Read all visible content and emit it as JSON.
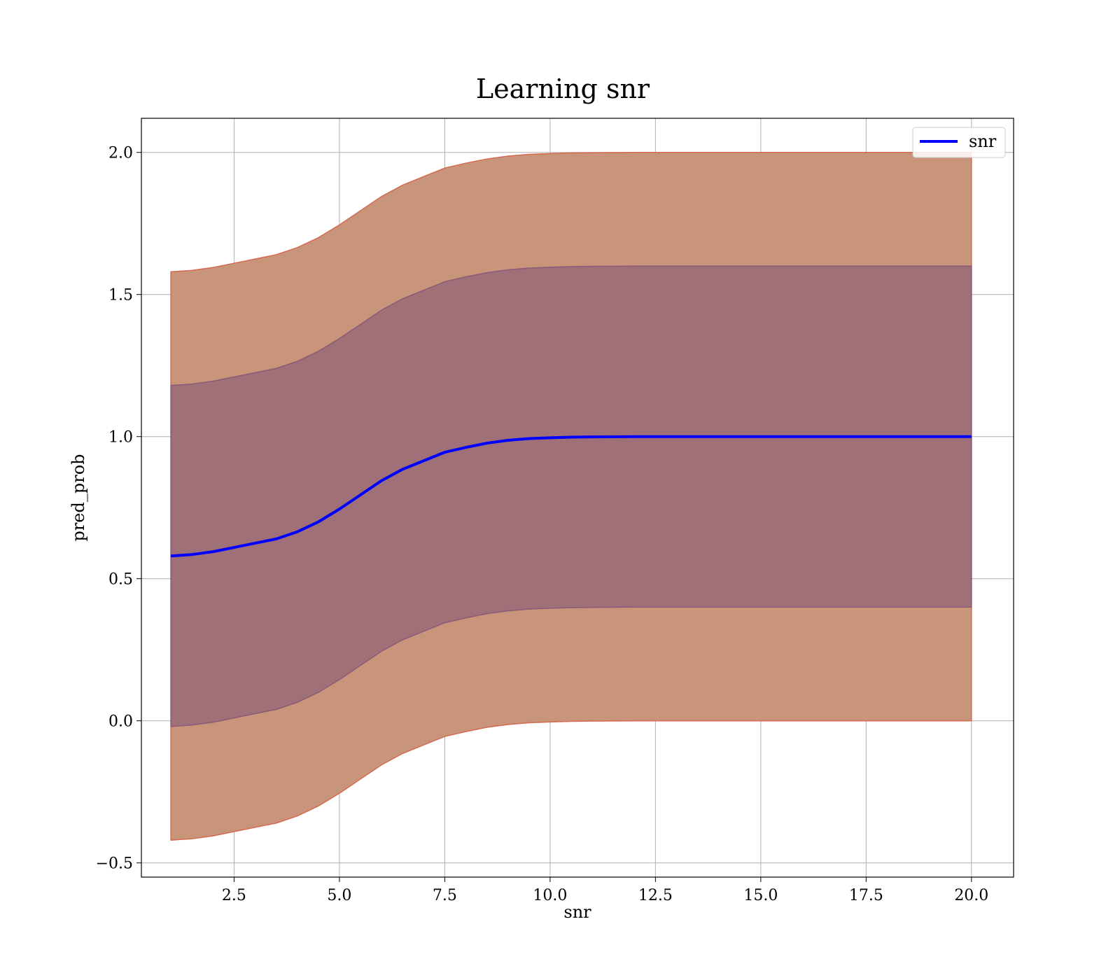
{
  "chart_data": {
    "type": "line",
    "title": "Learning snr",
    "xlabel": "snr",
    "ylabel": "pred_prob",
    "xlim": [
      0.3,
      21.0
    ],
    "ylim": [
      -0.55,
      2.12
    ],
    "xticks": [
      2.5,
      5.0,
      7.5,
      10.0,
      12.5,
      15.0,
      17.5,
      20.0
    ],
    "xtick_labels": [
      "2.5",
      "5.0",
      "7.5",
      "10.0",
      "12.5",
      "15.0",
      "17.5",
      "20.0"
    ],
    "yticks": [
      -0.5,
      0.0,
      0.5,
      1.0,
      1.5,
      2.0
    ],
    "ytick_labels": [
      "−0.5",
      "0.0",
      "0.5",
      "1.0",
      "1.5",
      "2.0"
    ],
    "grid": true,
    "legend": {
      "position": "top-right",
      "entries": [
        {
          "label": "snr",
          "color": "#0000ff"
        }
      ]
    },
    "series": [
      {
        "name": "snr",
        "color": "#0000ff",
        "x": [
          1.0,
          1.5,
          2.0,
          2.5,
          3.0,
          3.5,
          4.0,
          4.5,
          5.0,
          5.5,
          6.0,
          6.5,
          7.0,
          7.5,
          8.0,
          8.5,
          9.0,
          9.5,
          10.0,
          10.5,
          11.0,
          12.0,
          13.0,
          14.0,
          15.0,
          16.0,
          17.0,
          18.0,
          19.0,
          20.0
        ],
        "y": [
          0.58,
          0.585,
          0.595,
          0.61,
          0.625,
          0.64,
          0.665,
          0.7,
          0.745,
          0.795,
          0.845,
          0.885,
          0.915,
          0.945,
          0.962,
          0.977,
          0.987,
          0.993,
          0.996,
          0.998,
          0.999,
          1.0,
          1.0,
          1.0,
          1.0,
          1.0,
          1.0,
          1.0,
          1.0,
          1.0
        ]
      }
    ],
    "bands": [
      {
        "name": "outer",
        "lower_offset": -1.0,
        "upper_offset": 1.0,
        "fill": "#c8957a",
        "edge": "#d46a50"
      },
      {
        "name": "inner",
        "lower_offset": -0.6,
        "upper_offset": 0.6,
        "fill": "#a07078",
        "edge": "#8a5a78"
      }
    ]
  }
}
